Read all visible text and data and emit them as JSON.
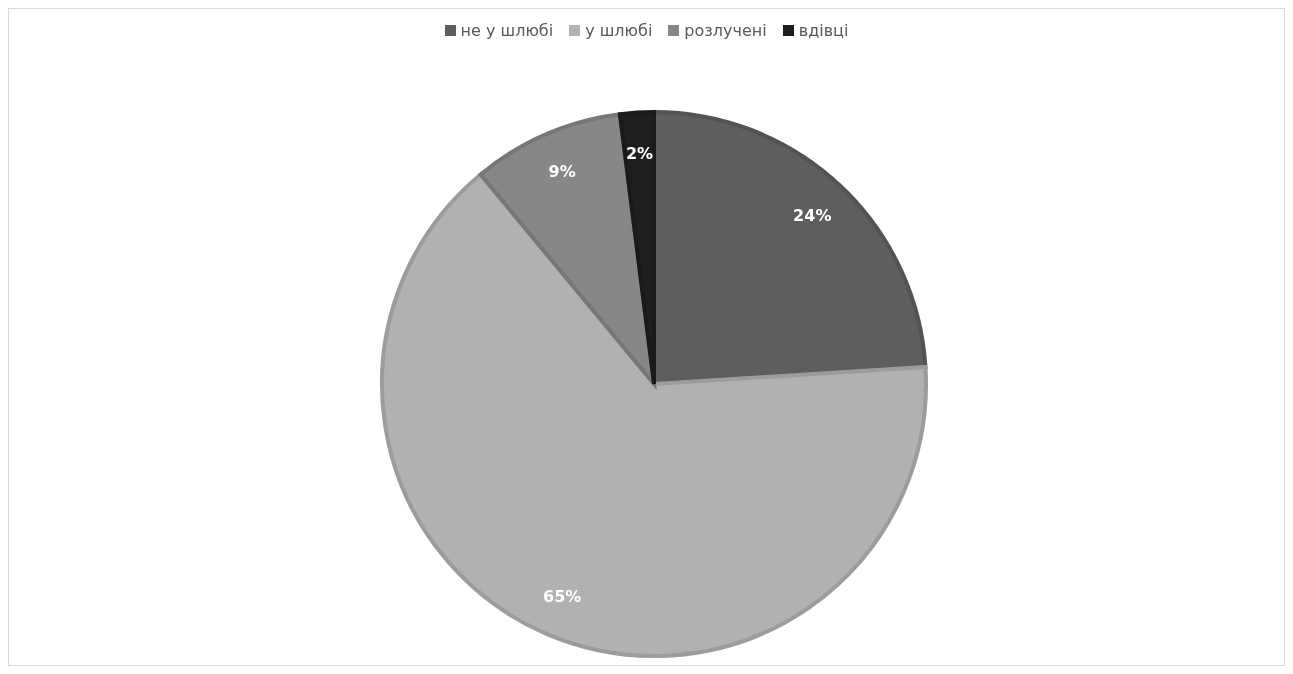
{
  "chart_data": {
    "type": "pie",
    "categories": [
      "не у шлюбі",
      "у шлюбі",
      "розлучені",
      "вдівці"
    ],
    "values": [
      24,
      65,
      9,
      2
    ],
    "colors": [
      "#5e5e5e",
      "#b1b1b1",
      "#878787",
      "#1e1e1e"
    ],
    "value_labels": [
      "24%",
      "65%",
      "9%",
      "2%"
    ],
    "legend": "top"
  }
}
